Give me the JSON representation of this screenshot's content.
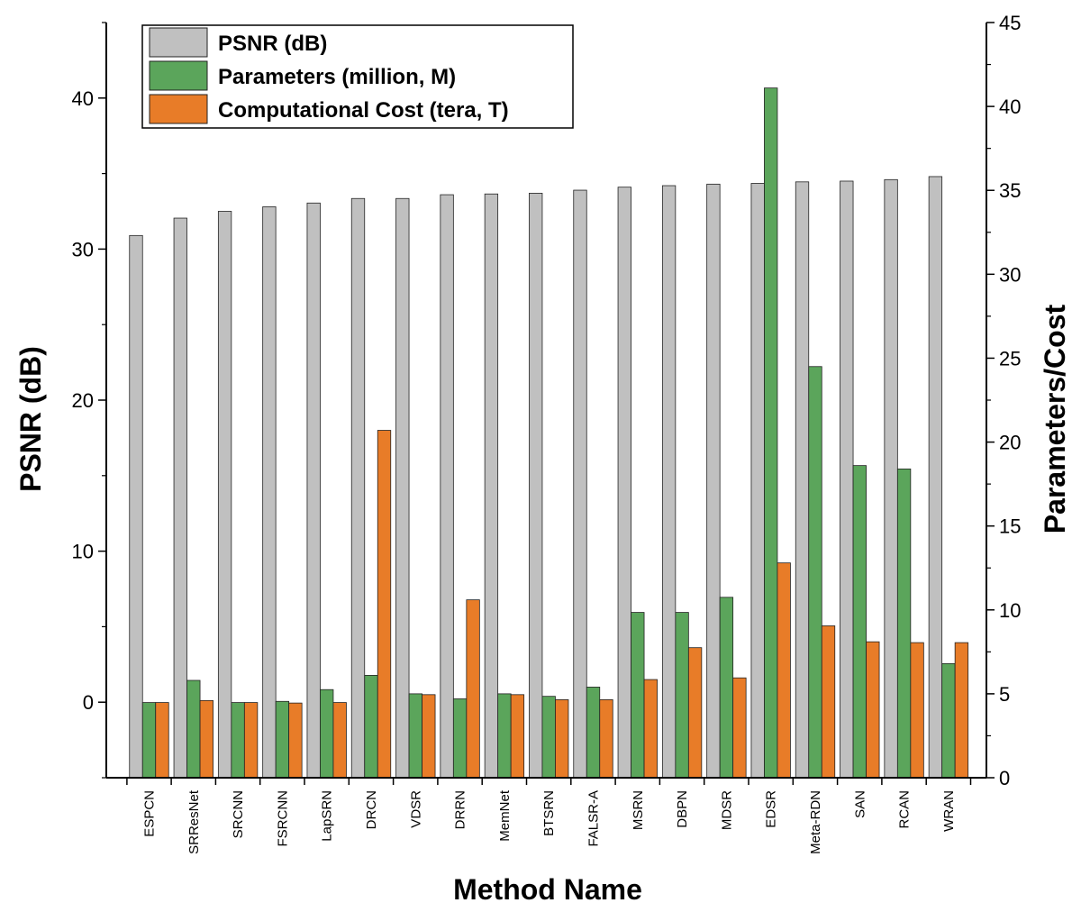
{
  "chart_data": {
    "type": "bar",
    "xlabel": "Method Name",
    "ylabel": "PSNR (dB)",
    "y2label": "Parameters/Cost",
    "ylim": [
      -5,
      45
    ],
    "y2lim": [
      0,
      45
    ],
    "yticks": [
      0,
      10,
      20,
      30,
      40
    ],
    "y2ticks": [
      0,
      5,
      10,
      15,
      20,
      25,
      30,
      35,
      40,
      45
    ],
    "legend_position": "top-left",
    "grid": false,
    "categories": [
      "ESPCN",
      "SRResNet",
      "SRCNN",
      "FSRCNN",
      "LapSRN",
      "DRCN",
      "VDSR",
      "DRRN",
      "MemNet",
      "BTSRN",
      "FALSR-A",
      "MSRN",
      "DBPN",
      "MDSR",
      "EDSR",
      "Meta-RDN",
      "SAN",
      "RCAN",
      "WRAN"
    ],
    "series": [
      {
        "name": "PSNR (dB)",
        "axis": "left",
        "color": "#c0c0c0",
        "values": [
          30.9,
          32.05,
          32.5,
          32.8,
          33.05,
          33.35,
          33.35,
          33.6,
          33.65,
          33.7,
          33.9,
          34.1,
          34.2,
          34.3,
          34.35,
          34.45,
          34.5,
          34.6,
          34.8
        ]
      },
      {
        "name": "Parameters (million, M)",
        "axis": "right",
        "color": "#5ba55b",
        "values": [
          4.48,
          5.8,
          4.48,
          4.55,
          5.25,
          6.1,
          5.0,
          4.7,
          5.0,
          4.85,
          5.4,
          9.85,
          9.85,
          10.75,
          41.1,
          24.5,
          18.6,
          18.4,
          6.8
        ]
      },
      {
        "name": "Computational Cost (tera, T)",
        "axis": "right",
        "color": "#e87c28",
        "values": [
          4.48,
          4.6,
          4.48,
          4.45,
          4.48,
          20.7,
          4.95,
          10.6,
          4.95,
          4.65,
          4.65,
          5.85,
          7.75,
          5.95,
          12.8,
          9.05,
          8.1,
          8.05,
          8.05
        ]
      }
    ]
  }
}
